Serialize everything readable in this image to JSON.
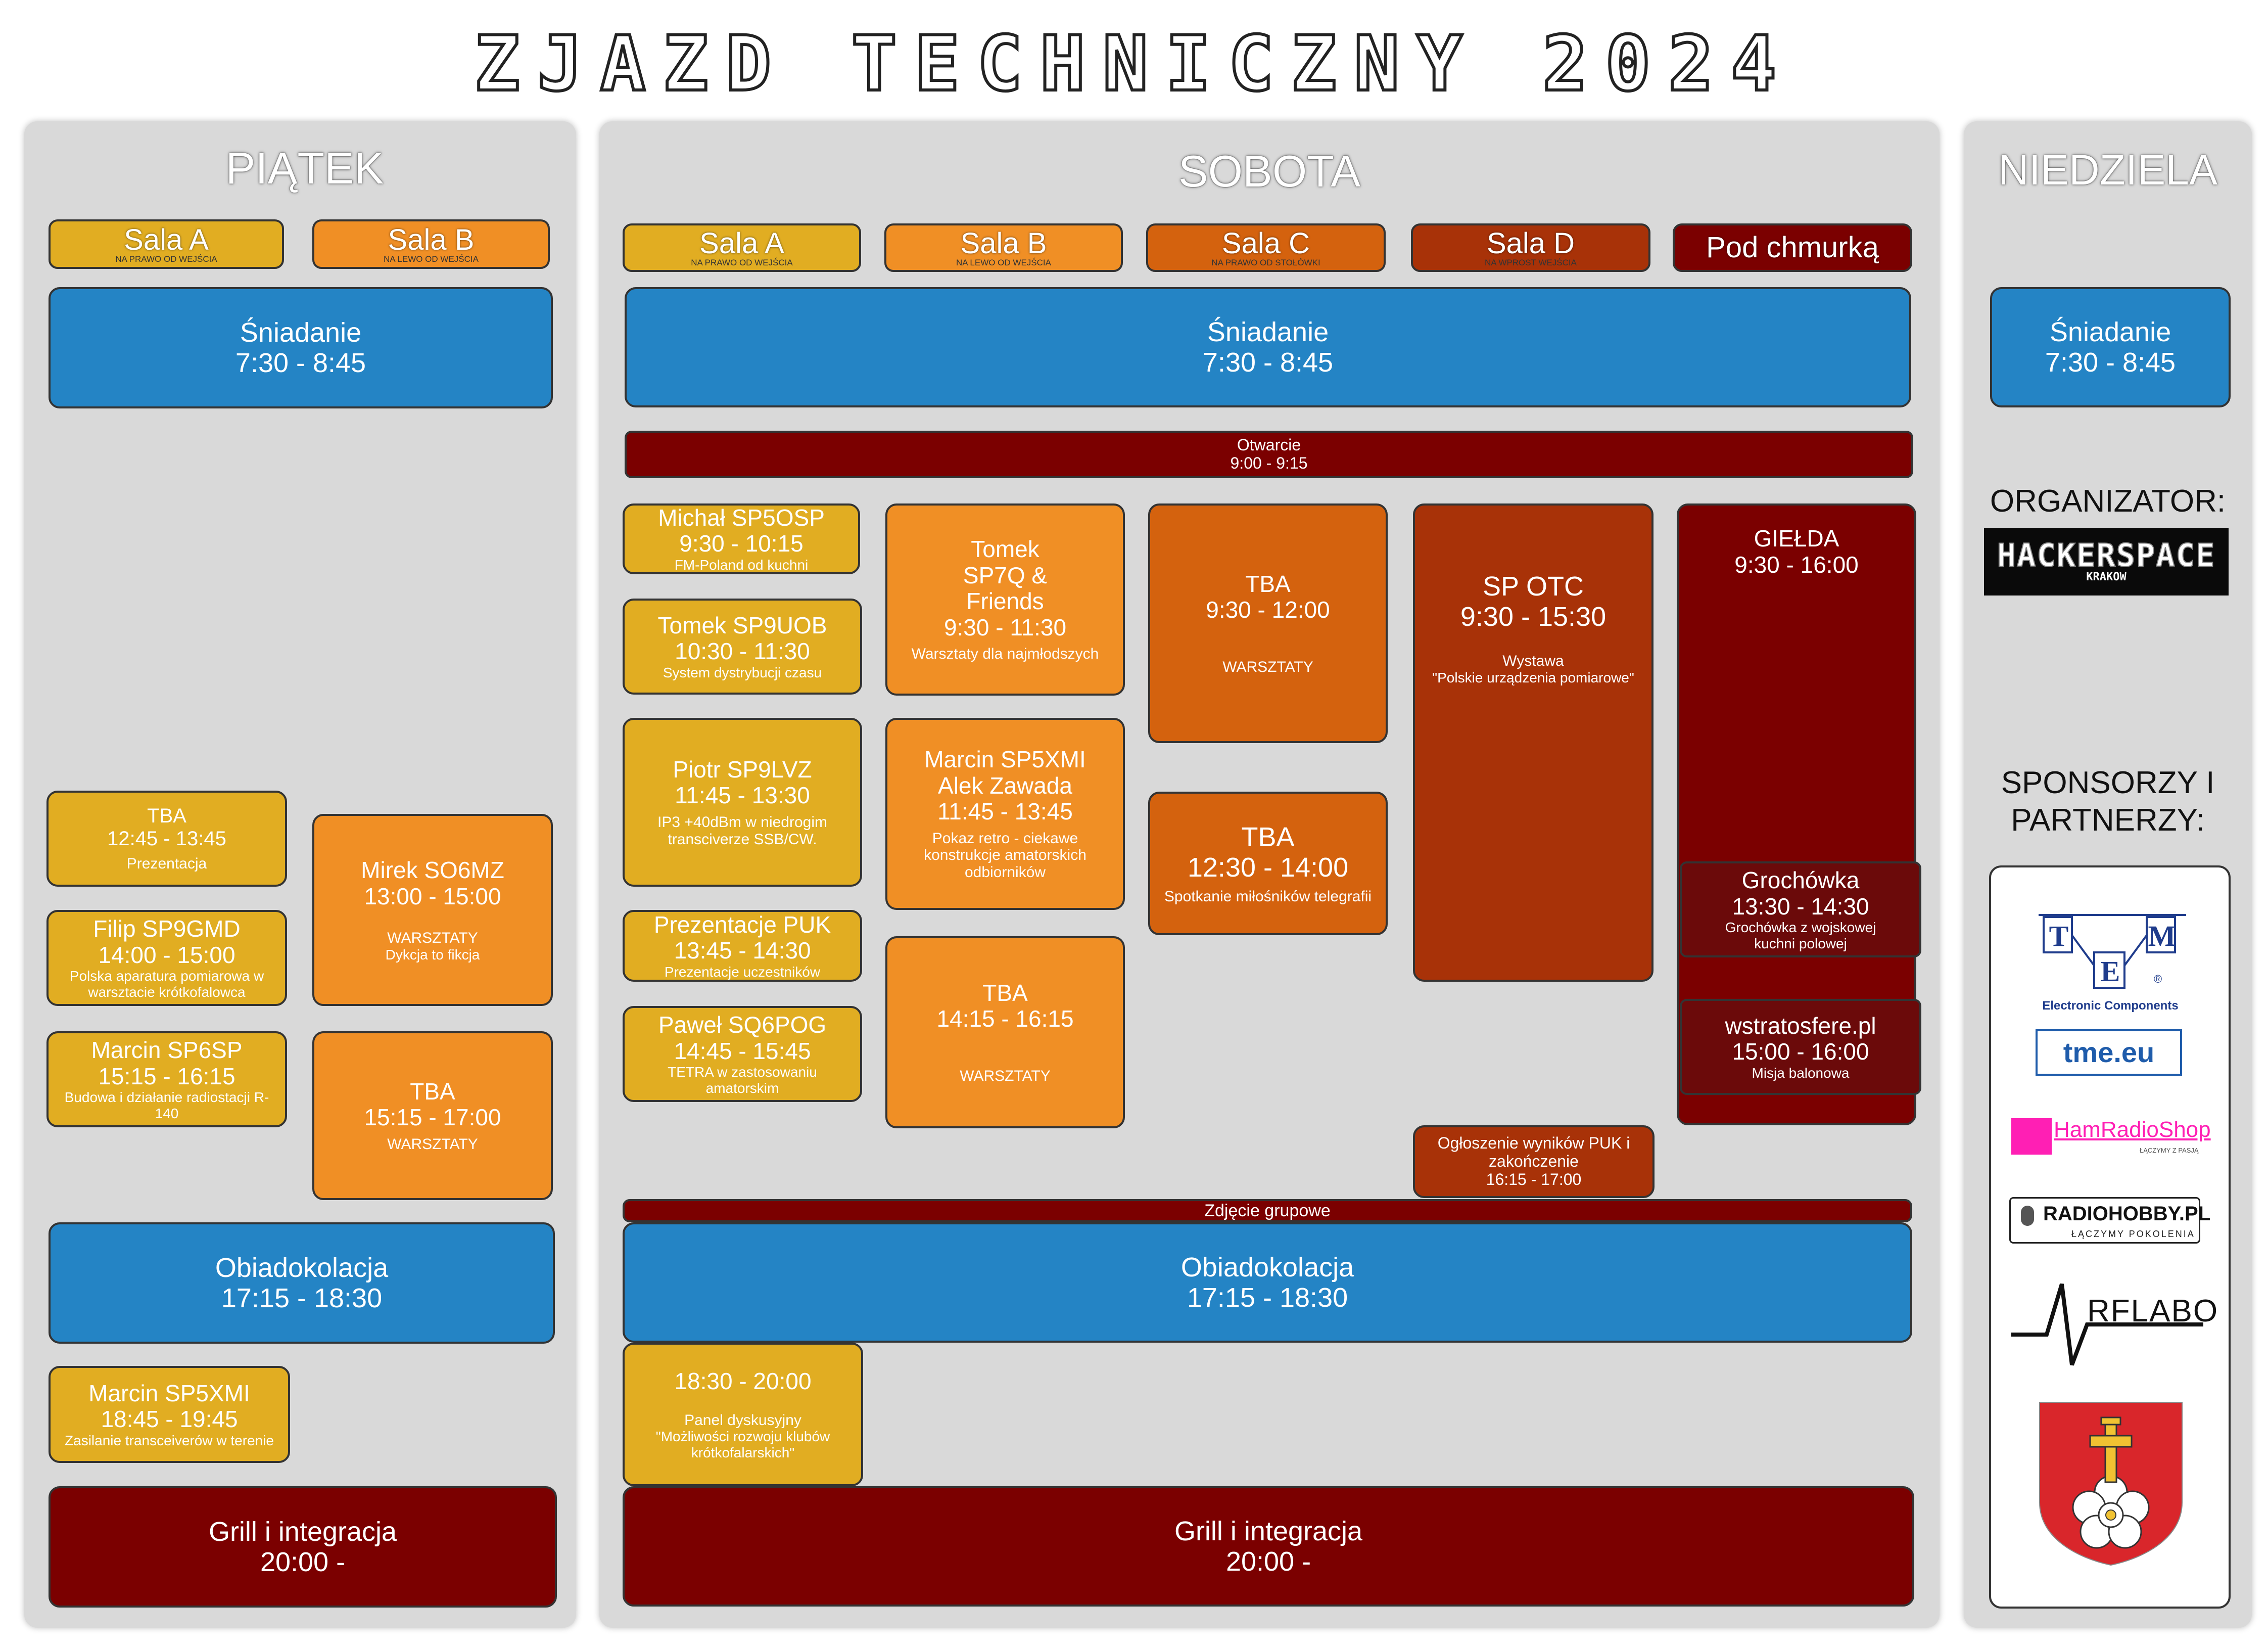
{
  "title": "ZJAZD TECHNICZNY 2024",
  "colors": {
    "sala_a": "#e1ad22",
    "sala_b": "#f08f25",
    "sala_c": "#d4620e",
    "sala_d": "#a83208",
    "outdoor": "#7b0000",
    "meal": "#2484c5"
  },
  "friday": {
    "name": "PIĄTEK",
    "halls": [
      {
        "name": "Sala A",
        "sub": "NA PRAWO OD WEJŚCIA"
      },
      {
        "name": "Sala B",
        "sub": "NA LEWO OD WEJŚCIA"
      }
    ],
    "breakfast": {
      "title": "Śniadanie",
      "time": "7:30 - 8:45"
    },
    "a1": {
      "title": "TBA",
      "time": "12:45 - 13:45",
      "desc": "Prezentacja"
    },
    "a2": {
      "title": "Filip SP9GMD",
      "time": "14:00 - 15:00",
      "desc": "Polska aparatura pomiarowa w warsztacie krótkofalowca"
    },
    "a3": {
      "title": "Marcin SP6SP",
      "time": "15:15 - 16:15",
      "desc": "Budowa i działanie radiostacji R-140"
    },
    "b1": {
      "title": "Mirek SO6MZ",
      "time": "13:00 - 15:00",
      "desc1": "WARSZTATY",
      "desc2": "Dykcja to fikcja"
    },
    "b2": {
      "title": "TBA",
      "time": "15:15 - 17:00",
      "desc": "WARSZTATY"
    },
    "dinner": {
      "title": "Obiadokolacja",
      "time": "17:15 - 18:30"
    },
    "evening": {
      "title": "Marcin SP5XMI",
      "time": "18:45 - 19:45",
      "desc": "Zasilanie transceiverów w terenie"
    },
    "grill": {
      "title": "Grill i integracja",
      "time": "20:00 -"
    }
  },
  "saturday": {
    "name": "SOBOTA",
    "halls": [
      {
        "name": "Sala A",
        "sub": "NA PRAWO OD WEJŚCIA"
      },
      {
        "name": "Sala B",
        "sub": "NA LEWO OD WEJŚCIA"
      },
      {
        "name": "Sala C",
        "sub": "NA PRAWO OD STOŁÓWKI"
      },
      {
        "name": "Sala D",
        "sub": "NA WPROST WEJŚCIA"
      },
      {
        "name": "Pod chmurką",
        "sub": ""
      }
    ],
    "breakfast": {
      "title": "Śniadanie",
      "time": "7:30 - 8:45"
    },
    "opening": {
      "title": "Otwarcie",
      "time": "9:00 - 9:15"
    },
    "a1": {
      "title": "Michał SP5OSP",
      "time": "9:30 - 10:15",
      "desc": "FM-Poland od kuchni"
    },
    "a2": {
      "title": "Tomek SP9UOB",
      "time": "10:30 - 11:30",
      "desc": "System dystrybucji czasu"
    },
    "a3": {
      "title": "Piotr SP9LVZ",
      "time": "11:45 - 13:30",
      "desc": "IP3 +40dBm w niedrogim transciverze SSB/CW."
    },
    "a4": {
      "title": "Prezentacje PUK",
      "time": "13:45 - 14:30",
      "desc": "Prezentacje uczestników"
    },
    "a5": {
      "title": "Paweł SQ6POG",
      "time": "14:45 - 15:45",
      "desc": "TETRA w zastosowaniu amatorskim"
    },
    "b1": {
      "title": "Tomek SP7Q & Friends",
      "time": "9:30 - 11:30",
      "desc": "Warsztaty dla najmłodszych"
    },
    "b2": {
      "title1": "Marcin SP5XMI",
      "title2": "Alek Zawada",
      "time": "11:45 - 13:45",
      "desc": "Pokaz retro - ciekawe konstrukcje amatorskich odbiorników"
    },
    "b3": {
      "title": "TBA",
      "time": "14:15 - 16:15",
      "desc": "WARSZTATY"
    },
    "c1": {
      "title": "TBA",
      "time": "9:30 - 12:00",
      "desc": "WARSZTATY"
    },
    "c2": {
      "title": "TBA",
      "time": "12:30 - 14:00",
      "desc": "Spotkanie miłośników telegrafii"
    },
    "d1": {
      "title": "SP OTC",
      "time": "9:30 - 15:30",
      "desc1": "Wystawa",
      "desc2": "\"Polskie urządzenia pomiarowe\""
    },
    "d2": {
      "desc": "Ogłoszenie wyników PUK i zakończenie",
      "time": "16:15 - 17:00"
    },
    "e1": {
      "title": "GIEŁDA",
      "time": "9:30 - 16:00"
    },
    "e2": {
      "title": "Grochówka",
      "time": "13:30 - 14:30",
      "desc": "Grochówka z wojskowej kuchni polowej"
    },
    "e3": {
      "title": "wstratosfere.pl",
      "time": "15:00 - 16:00",
      "desc": "Misja balonowa"
    },
    "photo": {
      "title": "Zdjęcie grupowe"
    },
    "dinner": {
      "title": "Obiadokolacja",
      "time": "17:15 - 18:30"
    },
    "panel": {
      "time": "18:30 - 20:00",
      "desc1": "Panel dyskusyjny",
      "desc2": "\"Możliwości rozwoju klubów krótkofalarskich\""
    },
    "grill": {
      "title": "Grill i integracja",
      "time": "20:00 -"
    }
  },
  "sunday": {
    "name": "NIEDZIELA",
    "breakfast": {
      "title": "Śniadanie",
      "time": "7:30 - 8:45"
    },
    "organizer_label": "ORGANIZATOR:",
    "organizer_logo": {
      "main": "HACKERSPACE",
      "sub": "KRAKOW"
    },
    "sponsors_label1": "SPONSORZY I",
    "sponsors_label2": "PARTNERZY:",
    "sponsors": {
      "tme_letters": [
        "T",
        "E",
        "M"
      ],
      "tme_reg": "®",
      "tme_caption": "Electronic Components",
      "tme_url": "tme.eu",
      "hamradio": "HamRadioShop",
      "hamradio_sub": "ŁĄCZYMY Z PASJĄ",
      "radiohobby": "RADIOHOBBY.PL",
      "radiohobby_sub": "ŁĄCZYMY POKOLENIA",
      "rflabo": "RFLABO"
    }
  }
}
